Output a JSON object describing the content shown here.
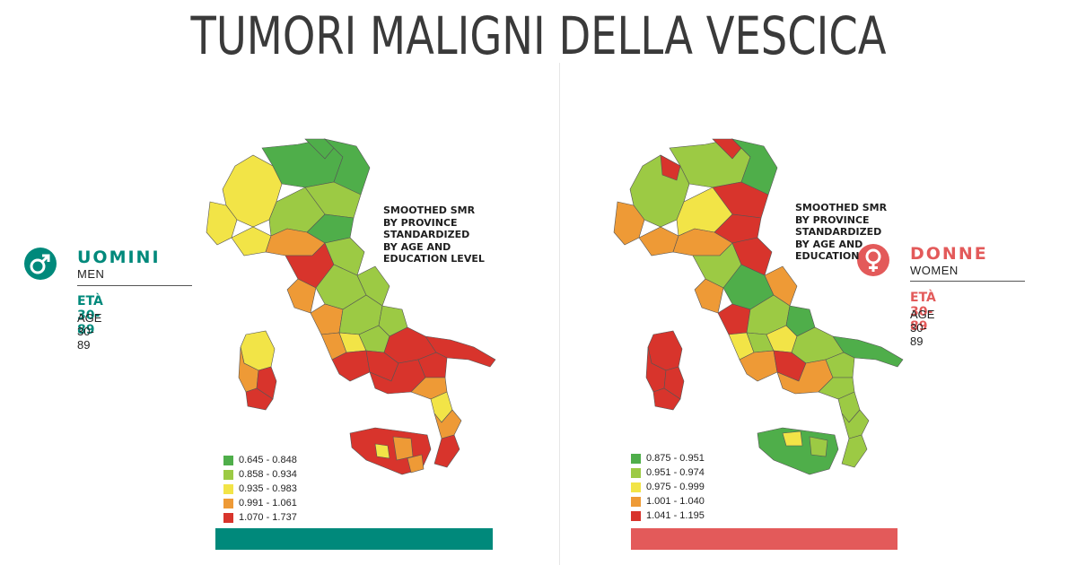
{
  "title": "TUMORI MALIGNI DELLA VESCICA",
  "colors": {
    "men_accent": "#00897b",
    "women_accent": "#e35a5a",
    "scale": [
      "#4fae4a",
      "#9cca44",
      "#f2e447",
      "#ee9a36",
      "#d8342c"
    ]
  },
  "men": {
    "label_it": "UOMINI",
    "label_en": "MEN",
    "age_it": "ETÀ 30-89",
    "age_en": "AGE 30-89",
    "icon": "male-symbol-icon",
    "note": "SMOOTHED SMR\nBY PROVINCE\nSTANDARDIZED\nBY AGE AND\nEDUCATION LEVEL",
    "legend": [
      "0.645 - 0.848",
      "0.858 - 0.934",
      "0.935 - 0.983",
      "0.991 - 1.061",
      "1.070 - 1.737"
    ]
  },
  "women": {
    "label_it": "DONNE",
    "label_en": "WOMEN",
    "age_it": "ETÀ 30-89",
    "age_en": "AGE 30-89",
    "icon": "female-symbol-icon",
    "note": "SMOOTHED SMR\nBY PROVINCE\nSTANDARDIZED\nBY AGE AND\nEDUCATION",
    "legend": [
      "0.875 - 0.951",
      "0.951 - 0.974",
      "0.975 - 0.999",
      "1.001 - 1.040",
      "1.041 - 1.195"
    ]
  }
}
